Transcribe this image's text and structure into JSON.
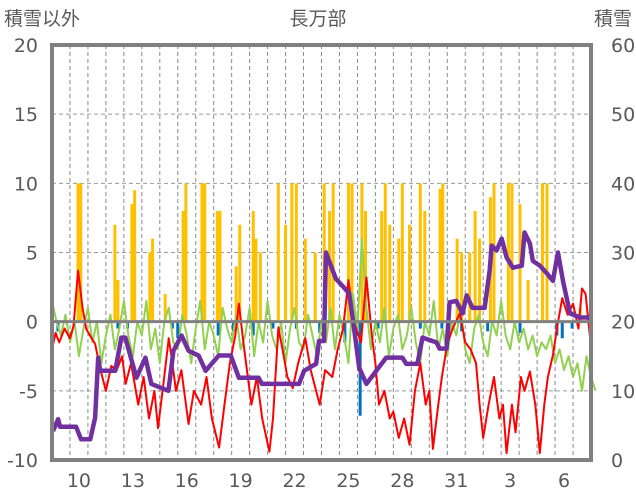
{
  "chart_data": {
    "type": "bar+line",
    "title": "長万部",
    "ylabel_left": "積雪以外",
    "ylabel_right": "積雪",
    "ylim_left": [
      -10,
      20
    ],
    "ylim_right": [
      0,
      60
    ],
    "yticks_left": [
      "20",
      "15",
      "10",
      "5",
      "0",
      "-5",
      "-10"
    ],
    "yticks_right": [
      "60",
      "50",
      "40",
      "30",
      "20",
      "10",
      "0"
    ],
    "x_unit": "days since start of first day (Jan 9)",
    "xlim": [
      0,
      30
    ],
    "xtick_labels": [
      "10",
      "13",
      "16",
      "19",
      "22",
      "25",
      "28",
      "31",
      "3",
      "6"
    ],
    "xtick_days": [
      1,
      4,
      7,
      10,
      13,
      16,
      19,
      22,
      25,
      28
    ],
    "grid": true,
    "colors": {
      "orange": "#FFC000",
      "blue": "#0070C0",
      "red": "#FF0000",
      "green": "#92D050",
      "purple": "#7030A0",
      "frame": "#808080"
    },
    "series": [
      {
        "name": "orange-bars",
        "axis": "left",
        "type": "bar",
        "points": [
          [
            1.45,
            10
          ],
          [
            1.6,
            10
          ],
          [
            3.5,
            7
          ],
          [
            3.67,
            3
          ],
          [
            4.45,
            8.5
          ],
          [
            4.6,
            9.5
          ],
          [
            5.45,
            5
          ],
          [
            5.6,
            6
          ],
          [
            6.3,
            2
          ],
          [
            7.3,
            8
          ],
          [
            7.45,
            10
          ],
          [
            8.35,
            10
          ],
          [
            8.5,
            10
          ],
          [
            9.2,
            8
          ],
          [
            9.35,
            8
          ],
          [
            10.25,
            4
          ],
          [
            10.45,
            7
          ],
          [
            11.2,
            8
          ],
          [
            11.35,
            6
          ],
          [
            11.6,
            5
          ],
          [
            12.6,
            10
          ],
          [
            13.0,
            7
          ],
          [
            13.35,
            10
          ],
          [
            13.6,
            10
          ],
          [
            14.1,
            6
          ],
          [
            14.65,
            5
          ],
          [
            15.15,
            10
          ],
          [
            15.45,
            8
          ],
          [
            15.65,
            10
          ],
          [
            16.5,
            10
          ],
          [
            16.7,
            10
          ],
          [
            17.25,
            10
          ],
          [
            17.45,
            8
          ],
          [
            18.35,
            8
          ],
          [
            18.55,
            10
          ],
          [
            18.8,
            7
          ],
          [
            19.3,
            6
          ],
          [
            19.5,
            10
          ],
          [
            19.9,
            7
          ],
          [
            20.5,
            10
          ],
          [
            20.75,
            8
          ],
          [
            21.6,
            9.6
          ],
          [
            21.75,
            10
          ],
          [
            22.55,
            6
          ],
          [
            22.8,
            5
          ],
          [
            23.25,
            5
          ],
          [
            23.55,
            8
          ],
          [
            23.8,
            6
          ],
          [
            24.4,
            9
          ],
          [
            24.6,
            10
          ],
          [
            25.4,
            10
          ],
          [
            25.6,
            10
          ],
          [
            26.05,
            8.5
          ],
          [
            26.5,
            3
          ],
          [
            27.3,
            10
          ],
          [
            27.55,
            10
          ],
          [
            29.4,
            1
          ]
        ]
      },
      {
        "name": "blue-bars",
        "axis": "left",
        "type": "bar",
        "points": [
          [
            0.33,
            -0.7
          ],
          [
            3.67,
            -0.5
          ],
          [
            4.2,
            -0.5
          ],
          [
            6.7,
            -0.5
          ],
          [
            7.0,
            -1.2
          ],
          [
            9.25,
            -1
          ],
          [
            10.1,
            -0.7
          ],
          [
            11.2,
            -1
          ],
          [
            12.3,
            -0.5
          ],
          [
            13.6,
            -0.5
          ],
          [
            14.9,
            -0.8
          ],
          [
            16.3,
            -1.5
          ],
          [
            17.15,
            -6.8
          ],
          [
            18.15,
            -0.5
          ],
          [
            20.5,
            -0.5
          ],
          [
            21.7,
            -0.5
          ],
          [
            22.8,
            -0.7
          ],
          [
            24.25,
            -0.7
          ],
          [
            26.05,
            -0.8
          ],
          [
            28.1,
            -1
          ],
          [
            28.4,
            -1.2
          ],
          [
            28.95,
            -0.5
          ]
        ]
      },
      {
        "name": "green-line",
        "axis": "left",
        "type": "line",
        "step": 0.25,
        "values": [
          1.5,
          0,
          -1,
          0.5,
          -1.5,
          0,
          -2.5,
          -0.5,
          1,
          -1.5,
          0,
          -3,
          -1,
          0.5,
          -2,
          -0.5,
          1.5,
          -1,
          -2.5,
          0,
          -1,
          1.5,
          -2,
          -0.5,
          -3,
          0,
          1,
          -1.5,
          -2,
          0.5,
          -1,
          -3,
          -0.5,
          1.5,
          -2,
          0,
          -1,
          -2.5,
          1,
          -0.5,
          -1.5,
          0.5,
          -2,
          -1,
          1,
          -2.5,
          0,
          -1.5,
          1.5,
          -1,
          -2,
          0,
          -3,
          -0.5,
          1,
          -1.5,
          -2,
          0.5,
          -1,
          -2.5,
          0,
          -1.5,
          1,
          -2,
          0.5,
          -1,
          -3,
          2,
          -0.5,
          6,
          1,
          -2,
          0,
          -1.5,
          1,
          -2.5,
          -0.5,
          0.5,
          -2,
          -1,
          1,
          -1.5,
          -3,
          0,
          -1,
          1.5,
          -2,
          -0.5,
          -2.5,
          0,
          -1,
          1,
          -2,
          -3,
          -0.5,
          0.5,
          -1.5,
          -2.5,
          0,
          -1,
          1.5,
          -1,
          -2,
          0,
          -1.5,
          -0.5,
          -2,
          -1,
          -2.5,
          -1.5,
          -2,
          -1,
          -3,
          -2,
          -3.5,
          -2.5,
          -4,
          -3,
          -5,
          -2.5,
          -4,
          -5
        ]
      },
      {
        "name": "red-line",
        "axis": "left",
        "type": "line",
        "points": [
          [
            0,
            -2
          ],
          [
            0.2,
            -0.8
          ],
          [
            0.4,
            -1.5
          ],
          [
            0.7,
            -0.5
          ],
          [
            1.0,
            -1.2
          ],
          [
            1.2,
            -0.3
          ],
          [
            1.45,
            3.7
          ],
          [
            1.7,
            1.0
          ],
          [
            1.9,
            -0.5
          ],
          [
            2.2,
            -1.2
          ],
          [
            2.4,
            -1.6
          ],
          [
            2.7,
            -3.5
          ],
          [
            3.0,
            -5
          ],
          [
            3.3,
            -3.2
          ],
          [
            3.6,
            -3.5
          ],
          [
            3.9,
            -2.5
          ],
          [
            4.1,
            -4.5
          ],
          [
            4.4,
            -3
          ],
          [
            4.8,
            -6
          ],
          [
            5.1,
            -4
          ],
          [
            5.4,
            -7
          ],
          [
            5.7,
            -5
          ],
          [
            5.9,
            -7.7
          ],
          [
            6.2,
            -4.5
          ],
          [
            6.5,
            -1.2
          ],
          [
            6.7,
            -3
          ],
          [
            6.9,
            -5
          ],
          [
            7.2,
            -3.5
          ],
          [
            7.6,
            -7.4
          ],
          [
            7.9,
            -5
          ],
          [
            8.3,
            -6
          ],
          [
            8.6,
            -4
          ],
          [
            8.9,
            -7
          ],
          [
            9.3,
            -9.1
          ],
          [
            9.6,
            -6
          ],
          [
            9.9,
            -3
          ],
          [
            10.2,
            -1
          ],
          [
            10.4,
            1.3
          ],
          [
            10.7,
            -2
          ],
          [
            11.1,
            -6
          ],
          [
            11.4,
            -4
          ],
          [
            11.7,
            -7
          ],
          [
            12.1,
            -9.4
          ],
          [
            12.3,
            -7
          ],
          [
            12.6,
            -0.4
          ],
          [
            12.9,
            -2.5
          ],
          [
            13.1,
            -4
          ],
          [
            13.4,
            -4.8
          ],
          [
            13.7,
            -3
          ],
          [
            14.1,
            -1.2
          ],
          [
            14.4,
            -3.5
          ],
          [
            14.6,
            -4.5
          ],
          [
            14.9,
            -6
          ],
          [
            15.2,
            -3.5
          ],
          [
            15.6,
            -4
          ],
          [
            15.9,
            -2
          ],
          [
            16.2,
            -0.5
          ],
          [
            16.5,
            3
          ],
          [
            16.8,
            0
          ],
          [
            17.2,
            -1.5
          ],
          [
            17.5,
            3.2
          ],
          [
            17.8,
            -1
          ],
          [
            18.0,
            -3
          ],
          [
            18.2,
            -6
          ],
          [
            18.5,
            -5
          ],
          [
            18.8,
            -7
          ],
          [
            19.0,
            -6.5
          ],
          [
            19.3,
            -8.4
          ],
          [
            19.6,
            -7
          ],
          [
            19.9,
            -8.9
          ],
          [
            20.2,
            -5
          ],
          [
            20.5,
            -3
          ],
          [
            20.8,
            -6
          ],
          [
            21.0,
            -5
          ],
          [
            21.2,
            -9.2
          ],
          [
            21.5,
            -6
          ],
          [
            21.7,
            -4
          ],
          [
            22.0,
            -1.6
          ],
          [
            22.3,
            -0.5
          ],
          [
            22.7,
            0.6
          ],
          [
            23.0,
            -1.5
          ],
          [
            23.3,
            -2
          ],
          [
            23.6,
            -3
          ],
          [
            23.8,
            -6
          ],
          [
            24.0,
            -8.4
          ],
          [
            24.3,
            -6
          ],
          [
            24.6,
            -4
          ],
          [
            24.9,
            -7
          ],
          [
            25.1,
            -6
          ],
          [
            25.3,
            -9.5
          ],
          [
            25.6,
            -6
          ],
          [
            25.8,
            -8
          ],
          [
            26.1,
            -4
          ],
          [
            26.3,
            -5
          ],
          [
            26.6,
            -3.6
          ],
          [
            26.9,
            -6
          ],
          [
            27.15,
            -9.5
          ],
          [
            27.4,
            -6
          ],
          [
            27.6,
            -4
          ],
          [
            27.9,
            -2.3
          ],
          [
            28.1,
            -0.5
          ],
          [
            28.4,
            1.7
          ],
          [
            28.7,
            0.5
          ],
          [
            29.0,
            1.3
          ],
          [
            29.3,
            -0.5
          ],
          [
            29.5,
            2.4
          ],
          [
            29.7,
            2.0
          ],
          [
            29.95,
            -1.2
          ]
        ]
      },
      {
        "name": "purple-line",
        "axis": "right",
        "type": "line",
        "points": [
          [
            0.06,
            4.2
          ],
          [
            0.34,
            5.9
          ],
          [
            0.45,
            4.8
          ],
          [
            1.34,
            4.8
          ],
          [
            1.62,
            3.0
          ],
          [
            2.13,
            3.0
          ],
          [
            2.4,
            6.1
          ],
          [
            2.57,
            14.8
          ],
          [
            2.68,
            12.9
          ],
          [
            3.52,
            12.9
          ],
          [
            3.86,
            17.7
          ],
          [
            4.08,
            17.7
          ],
          [
            4.7,
            11.9
          ],
          [
            5.2,
            14.8
          ],
          [
            5.53,
            11.0
          ],
          [
            6.48,
            10.0
          ],
          [
            6.76,
            15.8
          ],
          [
            7.21,
            18.0
          ],
          [
            7.6,
            15.8
          ],
          [
            8.16,
            15.1
          ],
          [
            8.55,
            12.9
          ],
          [
            9.28,
            15.1
          ],
          [
            9.95,
            15.1
          ],
          [
            10.4,
            11.9
          ],
          [
            11.5,
            11.9
          ],
          [
            11.68,
            11.0
          ],
          [
            13.75,
            11.0
          ],
          [
            14.03,
            12.9
          ],
          [
            14.7,
            13.9
          ],
          [
            14.86,
            17.2
          ],
          [
            15.14,
            17.2
          ],
          [
            15.25,
            30.0
          ],
          [
            15.42,
            28.8
          ],
          [
            15.8,
            26.2
          ],
          [
            16.54,
            24.1
          ],
          [
            16.7,
            21.2
          ],
          [
            17.1,
            13.3
          ],
          [
            17.5,
            11.0
          ],
          [
            18.05,
            12.9
          ],
          [
            18.6,
            14.8
          ],
          [
            19.5,
            14.8
          ],
          [
            19.72,
            13.9
          ],
          [
            20.34,
            13.9
          ],
          [
            20.62,
            17.7
          ],
          [
            21.4,
            17.0
          ],
          [
            21.57,
            16.1
          ],
          [
            21.96,
            16.1
          ],
          [
            22.13,
            22.8
          ],
          [
            22.5,
            23.0
          ],
          [
            22.85,
            21.2
          ],
          [
            23.08,
            23.8
          ],
          [
            23.4,
            22.0
          ],
          [
            24.08,
            22.0
          ],
          [
            24.36,
            27.4
          ],
          [
            24.47,
            31.0
          ],
          [
            24.75,
            30.3
          ],
          [
            25.03,
            32.0
          ],
          [
            25.3,
            29.3
          ],
          [
            25.65,
            27.8
          ],
          [
            26.15,
            28.1
          ],
          [
            26.3,
            32.9
          ],
          [
            26.6,
            31.3
          ],
          [
            26.76,
            28.8
          ],
          [
            27.15,
            28.1
          ],
          [
            27.54,
            27.0
          ],
          [
            27.88,
            25.9
          ],
          [
            28.16,
            30.0
          ],
          [
            28.44,
            25.9
          ],
          [
            28.83,
            21.2
          ],
          [
            29.4,
            20.6
          ],
          [
            29.95,
            20.6
          ],
          [
            30.0,
            21.0
          ]
        ]
      }
    ]
  }
}
